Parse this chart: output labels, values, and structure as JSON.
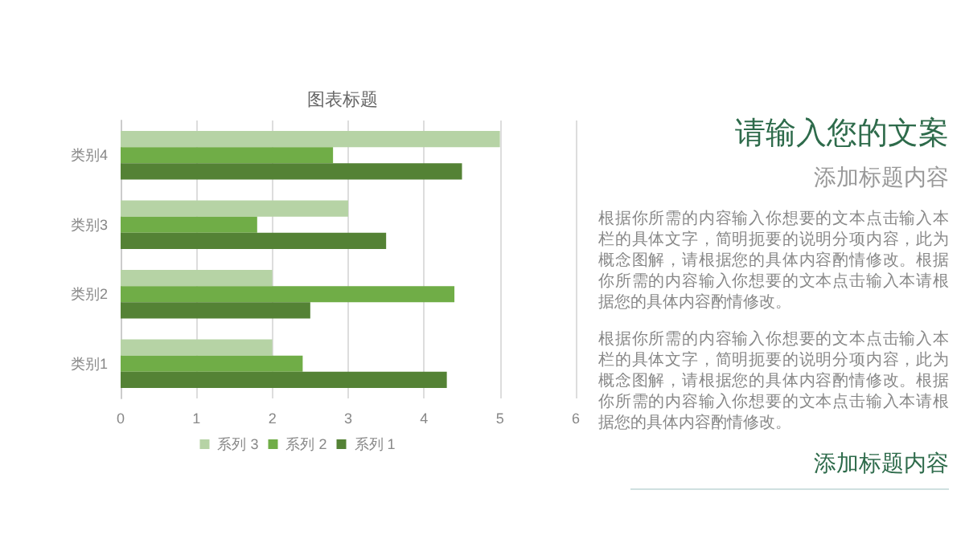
{
  "chart_data": [
    {
      "type": "bar",
      "orientation": "horizontal",
      "title": "图表标题",
      "categories": [
        "类别4",
        "类别3",
        "类别2",
        "类别1"
      ],
      "series": [
        {
          "name": "系列 3",
          "color": "#b6d3a5",
          "values": [
            5,
            3,
            2,
            2
          ]
        },
        {
          "name": "系列 2",
          "color": "#70ad47",
          "values": [
            2.8,
            1.8,
            4.4,
            2.4
          ]
        },
        {
          "name": "系列 1",
          "color": "#548235",
          "values": [
            4.5,
            3.5,
            2.5,
            4.3
          ]
        }
      ],
      "xlim": [
        0,
        6
      ],
      "xticks": [
        0,
        1,
        2,
        3,
        4,
        5,
        6
      ],
      "grid": "x",
      "legend": "bottom"
    },
    {
      "type": "other",
      "title": "请输入您的文案",
      "subtitle": "添加标题内容",
      "annotations": [
        "根据你所需的内容输入你想要的文本点击输入本栏的具体文字，简明扼要的说明分项内容，此为概念图解，请根据您的具体内容酌情修改。根据你所需的内容输入你想要的文本点击输入本请根据您的具体内容酌情修改。",
        "根据你所需的内容输入你想要的文本点击输入本栏的具体文字，简明扼要的说明分项内容，此为概念图解，请根据您的具体内容酌情修改。根据你所需的内容输入你想要的文本点击输入本请根据您的具体内容酌情修改。",
        "添加标题内容"
      ]
    }
  ]
}
